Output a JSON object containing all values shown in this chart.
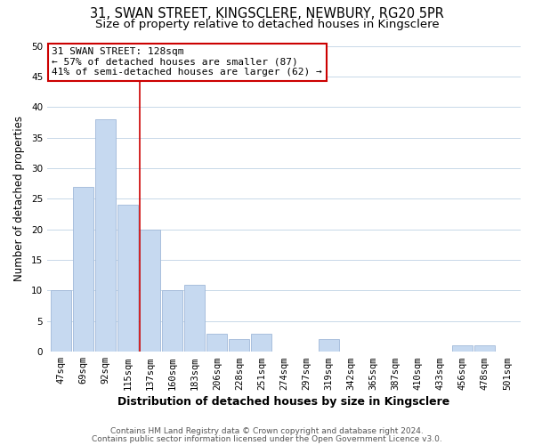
{
  "title": "31, SWAN STREET, KINGSCLERE, NEWBURY, RG20 5PR",
  "subtitle": "Size of property relative to detached houses in Kingsclere",
  "xlabel": "Distribution of detached houses by size in Kingsclere",
  "ylabel": "Number of detached properties",
  "bar_labels": [
    "47sqm",
    "69sqm",
    "92sqm",
    "115sqm",
    "137sqm",
    "160sqm",
    "183sqm",
    "206sqm",
    "228sqm",
    "251sqm",
    "274sqm",
    "297sqm",
    "319sqm",
    "342sqm",
    "365sqm",
    "387sqm",
    "410sqm",
    "433sqm",
    "456sqm",
    "478sqm",
    "501sqm"
  ],
  "bar_values": [
    10,
    27,
    38,
    24,
    20,
    10,
    11,
    3,
    2,
    3,
    0,
    0,
    2,
    0,
    0,
    0,
    0,
    0,
    1,
    1,
    0
  ],
  "bar_color": "#c6d9f0",
  "bar_edge_color": "#a0b8d8",
  "ylim": [
    0,
    50
  ],
  "yticks": [
    0,
    5,
    10,
    15,
    20,
    25,
    30,
    35,
    40,
    45,
    50
  ],
  "annotation_title": "31 SWAN STREET: 128sqm",
  "annotation_line1": "← 57% of detached houses are smaller (87)",
  "annotation_line2": "41% of semi-detached houses are larger (62) →",
  "annotation_box_color": "#ffffff",
  "annotation_border_color": "#cc0000",
  "vline_color": "#cc0000",
  "footer_line1": "Contains HM Land Registry data © Crown copyright and database right 2024.",
  "footer_line2": "Contains public sector information licensed under the Open Government Licence v3.0.",
  "background_color": "#ffffff",
  "grid_color": "#c8d8e8",
  "title_fontsize": 10.5,
  "subtitle_fontsize": 9.5,
  "xlabel_fontsize": 9,
  "ylabel_fontsize": 8.5,
  "tick_fontsize": 7.5,
  "annotation_fontsize": 8,
  "footer_fontsize": 6.5,
  "vline_x_index": 3.55
}
